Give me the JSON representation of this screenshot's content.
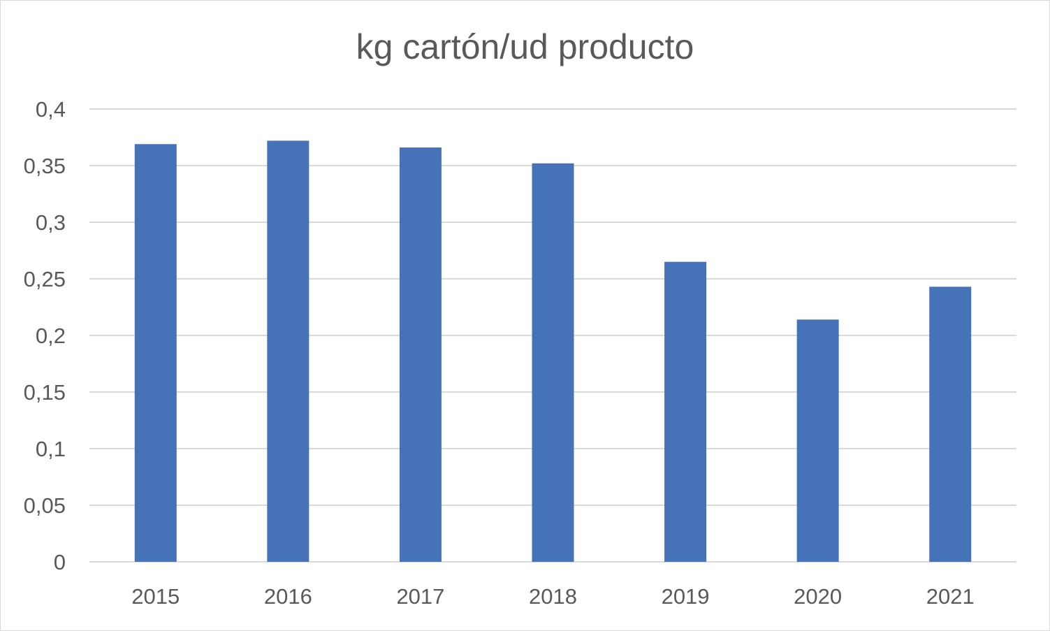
{
  "chart_data": {
    "type": "bar",
    "title": "kg cartón/ud producto",
    "xlabel": "",
    "ylabel": "",
    "categories": [
      "2015",
      "2016",
      "2017",
      "2018",
      "2019",
      "2020",
      "2021"
    ],
    "values": [
      0.369,
      0.372,
      0.366,
      0.352,
      0.265,
      0.214,
      0.243
    ],
    "ylim": [
      0,
      0.4
    ],
    "yticks": [
      0,
      0.05,
      0.1,
      0.15,
      0.2,
      0.25,
      0.3,
      0.35,
      0.4
    ],
    "ytick_labels": [
      "0",
      "0,05",
      "0,1",
      "0,15",
      "0,2",
      "0,25",
      "0,3",
      "0,35",
      "0,4"
    ],
    "grid": true,
    "legend": "none",
    "bar_color": "#4672b8",
    "grid_color": "#d9d9d9"
  }
}
